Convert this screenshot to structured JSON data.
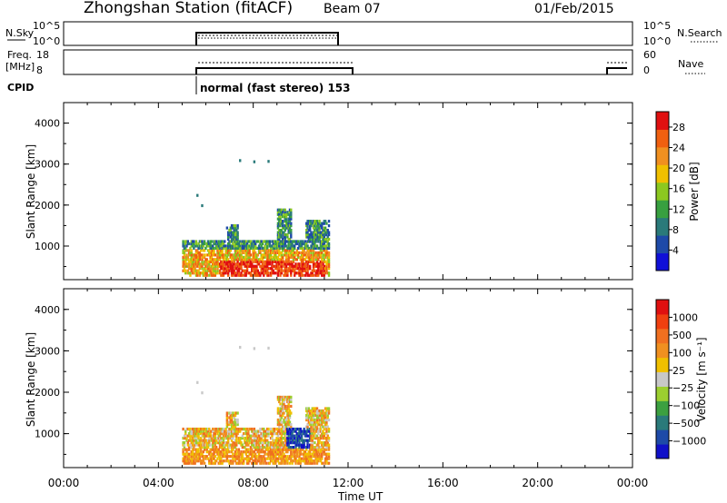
{
  "header": {
    "station": "Zhongshan Station (fitACF)",
    "beam": "Beam 07",
    "date": "01/Feb/2015"
  },
  "strip_panels": {
    "nsky_label": "N.Sky",
    "nsky_ticks": [
      "10^5",
      "10^0"
    ],
    "nsearch_label": "N.Search",
    "nsearch_ticks": [
      "10^5",
      "10^0"
    ],
    "freq_label_top": "Freq.",
    "freq_label_unit": "[MHz]",
    "freq_ticks": [
      "18",
      "8"
    ],
    "nave_label": "Nave",
    "nave_ticks": [
      "60",
      "0"
    ],
    "cpid_label": "CPID",
    "cpid_mode": "normal (fast stereo) 153"
  },
  "chart_data": [
    {
      "type": "heatmap",
      "panel": "power",
      "ylabel": "Slant Range [km]",
      "yticks": [
        1000,
        2000,
        3000,
        4000
      ],
      "ylim": [
        180,
        4500
      ],
      "xlim": [
        0,
        24
      ],
      "colorbar": {
        "label": "Power [dB]",
        "ticks": [
          4,
          8,
          12,
          16,
          20,
          24,
          28
        ],
        "range": [
          0,
          31
        ],
        "colors": [
          "#1010d8",
          "#1e4aa8",
          "#2a7a7a",
          "#38a040",
          "#8cc820",
          "#f0c000",
          "#f09020",
          "#f06010",
          "#e01010"
        ]
      }
    },
    {
      "type": "heatmap",
      "panel": "velocity",
      "ylabel": "Slant Range [km]",
      "yticks": [
        1000,
        2000,
        3000,
        4000
      ],
      "ylim": [
        180,
        4500
      ],
      "xlim": [
        0,
        24
      ],
      "xlabel": "Time UT",
      "xticks": [
        "00:00",
        "04:00",
        "08:00",
        "12:00",
        "16:00",
        "20:00",
        "00:00"
      ],
      "colorbar": {
        "label": "Velocity [m s⁻¹]",
        "ticks": [
          "1000",
          "500",
          "100",
          "25",
          "−25",
          "−100",
          "−500",
          "−1000"
        ],
        "colors": [
          "#1010c8",
          "#1e4aa8",
          "#2a7a7a",
          "#3ca040",
          "#9ccf30",
          "#c8c8c8",
          "#f0c000",
          "#f09020",
          "#f07020",
          "#f04010",
          "#e01010"
        ]
      }
    }
  ]
}
